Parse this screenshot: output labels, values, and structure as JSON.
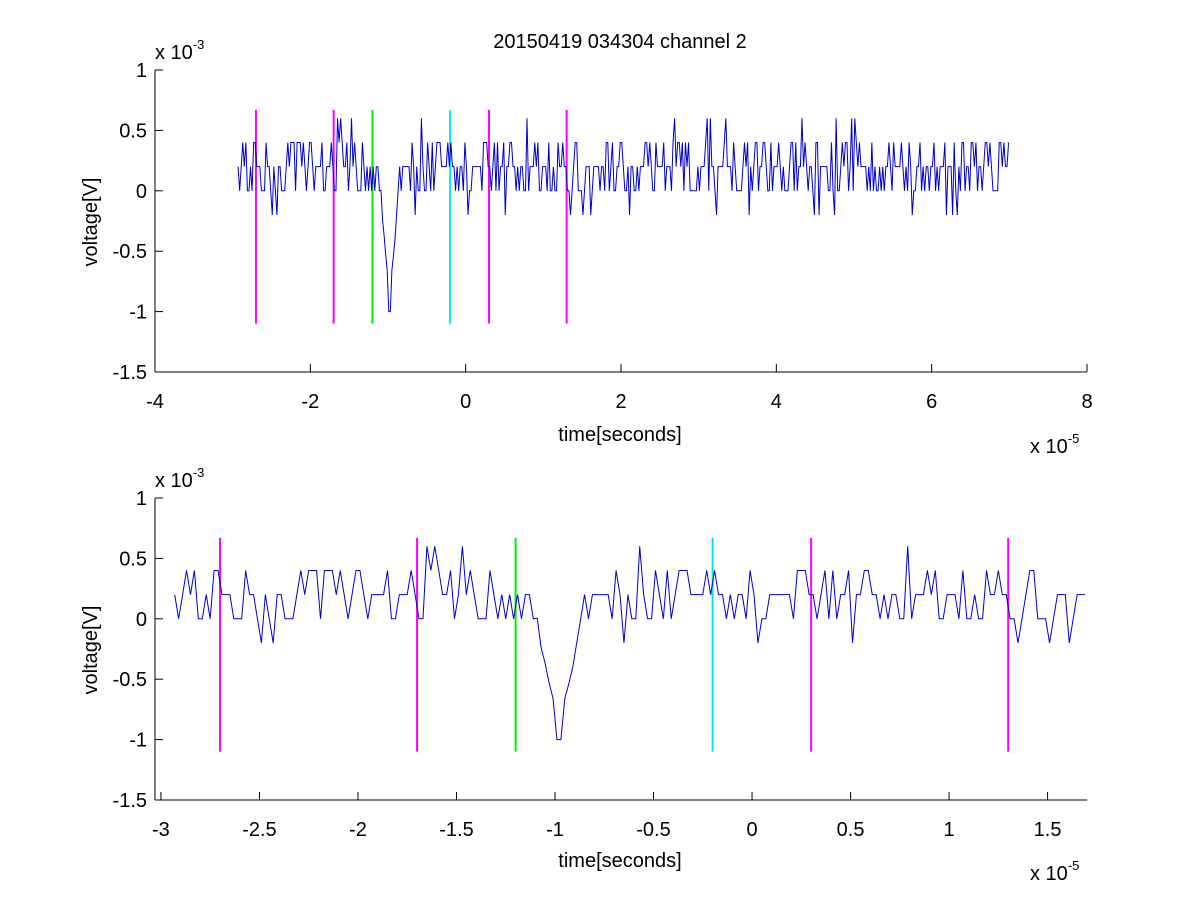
{
  "title": "20150419 034304 channel 2",
  "colors": {
    "signal": "#0000cc",
    "marker_magenta": "#ff00ff",
    "marker_green": "#00ee00",
    "marker_cyan": "#00e5ee",
    "axis": "#000000",
    "background": "#ffffff"
  },
  "chart_data": [
    {
      "type": "line",
      "title": "20150419 034304 channel 2",
      "xlabel": "time[seconds]",
      "ylabel": "voltage[V]",
      "x_multiplier": "x 10",
      "x_multiplier_exp": "-5",
      "y_multiplier": "x 10",
      "y_multiplier_exp": "-3",
      "xlim": [
        -4,
        8
      ],
      "ylim": [
        -1.5,
        1
      ],
      "x_ticks": [
        "-4",
        "-2",
        "0",
        "2",
        "4",
        "6",
        "8"
      ],
      "y_ticks": [
        "-1.5",
        "-1",
        "-0.5",
        "0",
        "0.5",
        "1"
      ],
      "grid": false,
      "series": [
        {
          "color": "#0000cc",
          "x_range": [
            -2.93,
            7.0
          ],
          "baseline": 0.2,
          "levels": [
            0,
            0.2,
            0.4
          ],
          "dip": {
            "x": -0.98,
            "y": -1.0
          }
        }
      ],
      "markers": [
        {
          "x": -2.7,
          "ymin": -1.1,
          "ymax": 0.67,
          "color": "magenta"
        },
        {
          "x": -1.7,
          "ymin": -1.1,
          "ymax": 0.67,
          "color": "magenta"
        },
        {
          "x": -1.2,
          "ymin": -1.1,
          "ymax": 0.67,
          "color": "green"
        },
        {
          "x": -0.2,
          "ymin": -1.1,
          "ymax": 0.67,
          "color": "cyan"
        },
        {
          "x": 0.3,
          "ymin": -1.1,
          "ymax": 0.67,
          "color": "magenta"
        },
        {
          "x": 1.3,
          "ymin": -1.1,
          "ymax": 0.67,
          "color": "magenta"
        }
      ]
    },
    {
      "type": "line",
      "xlabel": "time[seconds]",
      "ylabel": "voltage[V]",
      "x_multiplier": "x 10",
      "x_multiplier_exp": "-5",
      "y_multiplier": "x 10",
      "y_multiplier_exp": "-3",
      "xlim": [
        -3.03,
        1.7
      ],
      "ylim": [
        -1.5,
        1
      ],
      "x_ticks": [
        "-3",
        "-2.5",
        "-2",
        "-1.5",
        "-1",
        "-0.5",
        "0",
        "0.5",
        "1",
        "1.5"
      ],
      "y_ticks": [
        "-1.5",
        "-1",
        "-0.5",
        "0",
        "0.5",
        "1"
      ],
      "grid": false,
      "series": [
        {
          "color": "#0000cc",
          "x_range": [
            -2.93,
            1.7
          ],
          "baseline": 0.2,
          "levels": [
            0,
            0.2,
            0.4
          ],
          "dip": {
            "x": -0.98,
            "y": -1.0
          }
        }
      ],
      "markers": [
        {
          "x": -2.7,
          "ymin": -1.1,
          "ymax": 0.67,
          "color": "magenta"
        },
        {
          "x": -1.7,
          "ymin": -1.1,
          "ymax": 0.67,
          "color": "magenta"
        },
        {
          "x": -1.2,
          "ymin": -1.1,
          "ymax": 0.67,
          "color": "green"
        },
        {
          "x": -0.2,
          "ymin": -1.1,
          "ymax": 0.67,
          "color": "cyan"
        },
        {
          "x": 0.3,
          "ymin": -1.1,
          "ymax": 0.67,
          "color": "magenta"
        },
        {
          "x": 1.3,
          "ymin": -1.1,
          "ymax": 0.67,
          "color": "magenta"
        }
      ]
    }
  ]
}
